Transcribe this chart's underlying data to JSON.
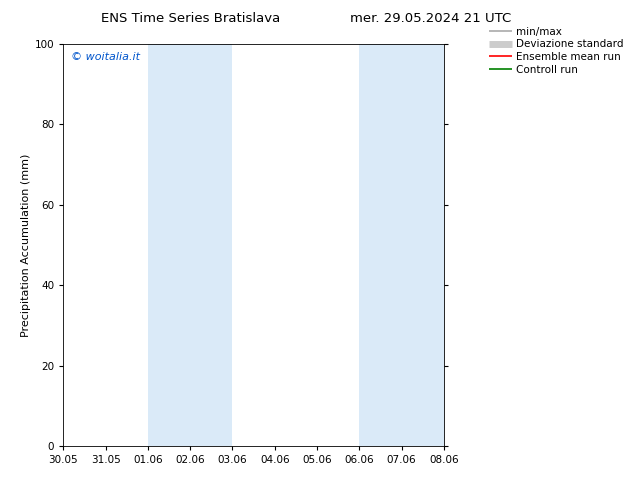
{
  "title_left": "ENS Time Series Bratislava",
  "title_right": "mer. 29.05.2024 21 UTC",
  "ylabel": "Precipitation Accumulation (mm)",
  "watermark": "© woitalia.it",
  "watermark_color": "#0055cc",
  "ylim": [
    0,
    100
  ],
  "yticks": [
    0,
    20,
    40,
    60,
    80,
    100
  ],
  "xtick_labels": [
    "30.05",
    "31.05",
    "01.06",
    "02.06",
    "03.06",
    "04.06",
    "05.06",
    "06.06",
    "07.06",
    "08.06"
  ],
  "xtick_positions": [
    0,
    1,
    2,
    3,
    4,
    5,
    6,
    7,
    8,
    9
  ],
  "shaded_regions": [
    {
      "x_start": 2,
      "x_end": 4,
      "color": "#daeaf8"
    },
    {
      "x_start": 7,
      "x_end": 9,
      "color": "#daeaf8"
    }
  ],
  "legend_entries": [
    {
      "label": "min/max",
      "color": "#aaaaaa",
      "lw": 1.2
    },
    {
      "label": "Deviazione standard",
      "color": "#cccccc",
      "lw": 5
    },
    {
      "label": "Ensemble mean run",
      "color": "#ff0000",
      "lw": 1.2
    },
    {
      "label": "Controll run",
      "color": "#008000",
      "lw": 1.2
    }
  ],
  "bg_color": "#ffffff",
  "title_fontsize": 9.5,
  "label_fontsize": 8,
  "tick_fontsize": 7.5,
  "legend_fontsize": 7.5,
  "watermark_fontsize": 8
}
